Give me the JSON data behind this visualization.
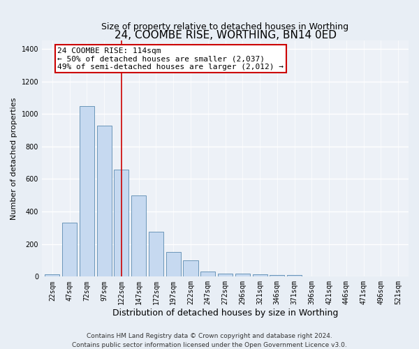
{
  "title": "24, COOMBE RISE, WORTHING, BN14 0ED",
  "subtitle": "Size of property relative to detached houses in Worthing",
  "xlabel": "Distribution of detached houses by size in Worthing",
  "ylabel": "Number of detached properties",
  "categories": [
    "22sqm",
    "47sqm",
    "72sqm",
    "97sqm",
    "122sqm",
    "147sqm",
    "172sqm",
    "197sqm",
    "222sqm",
    "247sqm",
    "272sqm",
    "296sqm",
    "321sqm",
    "346sqm",
    "371sqm",
    "396sqm",
    "421sqm",
    "446sqm",
    "471sqm",
    "496sqm",
    "521sqm"
  ],
  "values": [
    15,
    330,
    1050,
    930,
    660,
    500,
    275,
    150,
    100,
    33,
    20,
    20,
    15,
    10,
    8,
    0,
    0,
    0,
    0,
    0,
    0
  ],
  "bar_color": "#c6d9f0",
  "bar_edge_color": "#5a8ab0",
  "red_line_index": 4,
  "red_line_color": "#cc0000",
  "annotation_line1": "24 COOMBE RISE: 114sqm",
  "annotation_line2": "← 50% of detached houses are smaller (2,037)",
  "annotation_line3": "49% of semi-detached houses are larger (2,012) →",
  "annotation_box_color": "#ffffff",
  "annotation_box_edge_color": "#cc0000",
  "ylim": [
    0,
    1450
  ],
  "yticks": [
    0,
    200,
    400,
    600,
    800,
    1000,
    1200,
    1400
  ],
  "footer_line1": "Contains HM Land Registry data © Crown copyright and database right 2024.",
  "footer_line2": "Contains public sector information licensed under the Open Government Licence v3.0.",
  "background_color": "#e8eef5",
  "plot_background_color": "#edf1f7",
  "grid_color": "#ffffff",
  "title_fontsize": 11,
  "subtitle_fontsize": 9,
  "xlabel_fontsize": 9,
  "ylabel_fontsize": 8,
  "tick_fontsize": 7,
  "annotation_fontsize": 8,
  "footer_fontsize": 6.5
}
